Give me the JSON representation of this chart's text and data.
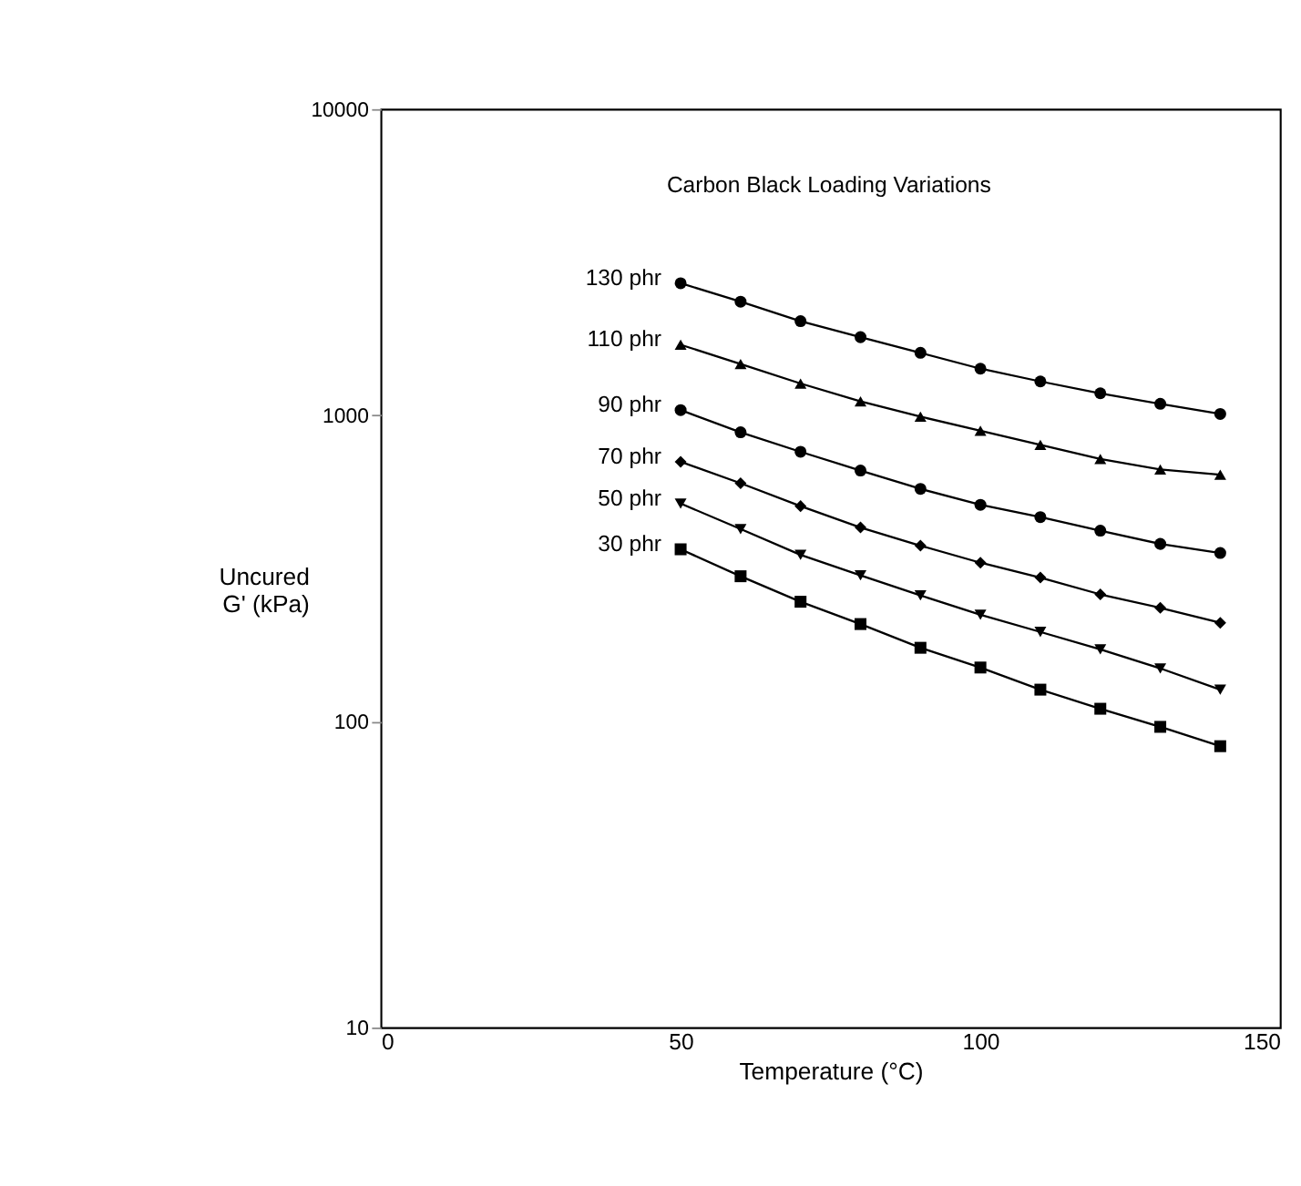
{
  "chart_data": {
    "type": "line",
    "xlabel": "Temperature (°C)",
    "ylabel": "Uncured G' (kPa)",
    "annotations": [
      "Carbon Black Loading Variations"
    ],
    "log": "y",
    "xlim": [
      0,
      150
    ],
    "xticks": [
      0,
      50,
      100,
      150
    ],
    "ylim": [
      10,
      10000
    ],
    "yticks": [
      10,
      100,
      1000,
      10000
    ],
    "grid": false,
    "legend": false,
    "line_style": "solid",
    "x": [
      50,
      60,
      70,
      80,
      90,
      100,
      110,
      120,
      130,
      140
    ],
    "series": [
      {
        "name": "130 phr",
        "color": "#000000",
        "marker": "circle",
        "values": [
          2700,
          2350,
          2030,
          1800,
          1600,
          1420,
          1290,
          1180,
          1090,
          1010
        ]
      },
      {
        "name": "110 phr",
        "color": "#000000",
        "marker": "triangle",
        "values": [
          1700,
          1470,
          1270,
          1110,
          990,
          890,
          800,
          720,
          665,
          640
        ]
      },
      {
        "name": "90 phr",
        "color": "#000000",
        "marker": "circle",
        "values": [
          1040,
          880,
          760,
          660,
          575,
          510,
          465,
          420,
          380,
          355
        ]
      },
      {
        "name": "70 phr",
        "color": "#000000",
        "marker": "diamond",
        "values": [
          705,
          600,
          505,
          430,
          375,
          330,
          295,
          260,
          235,
          210
        ]
      },
      {
        "name": "50 phr",
        "color": "#000000",
        "marker": "triangle-down",
        "values": [
          515,
          425,
          350,
          300,
          258,
          223,
          196,
          172,
          149,
          127
        ]
      },
      {
        "name": "30 phr",
        "color": "#000000",
        "marker": "square",
        "values": [
          365,
          298,
          246,
          208,
          174,
          150,
          127,
          110,
          96,
          83
        ]
      }
    ]
  }
}
